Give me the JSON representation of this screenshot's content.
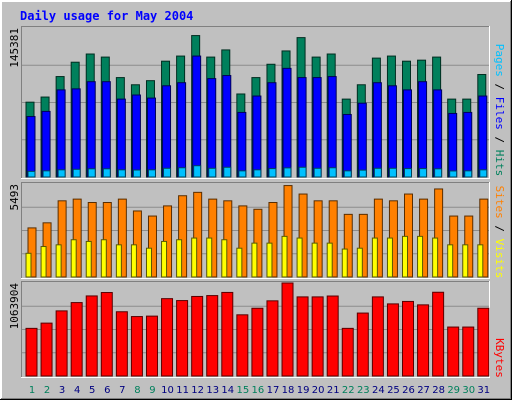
{
  "title": "Daily usage for May 2004",
  "colors": {
    "background": "#c0c0c0",
    "title": "#0000ff",
    "hits": "#00805c",
    "files": "#0000ff",
    "pages": "#00c0ff",
    "visits": "#ffff00",
    "sites": "#ff8000",
    "kbytes": "#ff0000",
    "weekday_label": "#000080",
    "weekend_label": "#00805c",
    "axis_label": "#000000"
  },
  "chart_data": [
    {
      "type": "bar",
      "panel": "hits-files-pages",
      "max_label": "145381",
      "ylim": [
        0,
        145381
      ],
      "legend": [
        "Pages",
        "Files",
        "Hits"
      ],
      "categories": [
        "1",
        "2",
        "3",
        "4",
        "5",
        "6",
        "7",
        "8",
        "9",
        "10",
        "11",
        "12",
        "13",
        "14",
        "15",
        "16",
        "17",
        "18",
        "19",
        "20",
        "21",
        "22",
        "23",
        "24",
        "25",
        "26",
        "27",
        "28",
        "29",
        "30",
        "31"
      ],
      "weekend_days": [
        "1",
        "2",
        "8",
        "9",
        "15",
        "16",
        "22",
        "23",
        "29",
        "30"
      ],
      "series": [
        {
          "name": "Hits",
          "values": [
            73000,
            78000,
            98000,
            112000,
            120000,
            117000,
            97000,
            90000,
            94000,
            113000,
            118000,
            138000,
            117000,
            124000,
            81000,
            97000,
            110000,
            123000,
            136000,
            117000,
            120000,
            76000,
            90000,
            116000,
            118000,
            113000,
            114000,
            117000,
            76000,
            76000,
            100000
          ]
        },
        {
          "name": "Files",
          "values": [
            59000,
            64000,
            85000,
            86000,
            93000,
            93000,
            76000,
            80000,
            77000,
            89000,
            92000,
            118000,
            96000,
            99000,
            63000,
            79000,
            92000,
            106000,
            97000,
            97000,
            98000,
            61000,
            72000,
            92000,
            89000,
            85000,
            93000,
            85000,
            62000,
            63000,
            79000
          ]
        },
        {
          "name": "Pages",
          "values": [
            5500,
            6000,
            7000,
            7500,
            8000,
            8000,
            7000,
            6800,
            7000,
            8500,
            9000,
            11000,
            8500,
            9500,
            6000,
            7000,
            8200,
            8900,
            9500,
            8500,
            9000,
            6000,
            6700,
            8500,
            8500,
            8200,
            8200,
            8000,
            5900,
            6000,
            7000
          ]
        }
      ]
    },
    {
      "type": "bar",
      "panel": "sites-visits",
      "max_label": "5493",
      "ylim": [
        0,
        5493
      ],
      "legend": [
        "Sites",
        "Visits"
      ],
      "categories": [
        "1",
        "2",
        "3",
        "4",
        "5",
        "6",
        "7",
        "8",
        "9",
        "10",
        "11",
        "12",
        "13",
        "14",
        "15",
        "16",
        "17",
        "18",
        "19",
        "20",
        "21",
        "22",
        "23",
        "24",
        "25",
        "26",
        "27",
        "28",
        "29",
        "30",
        "31"
      ],
      "series": [
        {
          "name": "Sites",
          "values": [
            2900,
            3200,
            4500,
            4600,
            4400,
            4400,
            4600,
            3900,
            3600,
            4200,
            4800,
            5000,
            4600,
            4500,
            4200,
            4000,
            4400,
            5400,
            4900,
            4500,
            4500,
            3700,
            3700,
            4600,
            4500,
            4900,
            4600,
            5200,
            3600,
            3600,
            4600
          ]
        },
        {
          "name": "Visits",
          "values": [
            1400,
            1800,
            1900,
            2200,
            2100,
            2200,
            1900,
            1900,
            1700,
            2100,
            2200,
            2300,
            2300,
            2200,
            1700,
            2000,
            2000,
            2400,
            2300,
            2000,
            2000,
            1650,
            1700,
            2300,
            2300,
            2400,
            2400,
            2300,
            1900,
            1900,
            1900
          ]
        }
      ]
    },
    {
      "type": "bar",
      "panel": "kbytes",
      "max_label": "1063904",
      "ylim": [
        0,
        1063904
      ],
      "legend": [
        "KBytes"
      ],
      "categories": [
        "1",
        "2",
        "3",
        "4",
        "5",
        "6",
        "7",
        "8",
        "9",
        "10",
        "11",
        "12",
        "13",
        "14",
        "15",
        "16",
        "17",
        "18",
        "19",
        "20",
        "21",
        "22",
        "23",
        "24",
        "25",
        "26",
        "27",
        "28",
        "29",
        "30",
        "31"
      ],
      "series": [
        {
          "name": "KBytes",
          "values": [
            545000,
            605000,
            745000,
            840000,
            916000,
            955000,
            735000,
            680000,
            685000,
            885000,
            863000,
            910000,
            920000,
            956000,
            700000,
            775000,
            860000,
            1063904,
            905000,
            905000,
            915000,
            545000,
            720000,
            905000,
            825000,
            853000,
            814000,
            958000,
            560000,
            560000,
            775000
          ]
        }
      ]
    }
  ]
}
